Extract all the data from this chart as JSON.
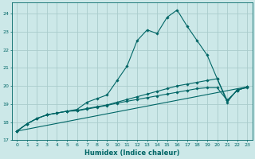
{
  "xlabel": "Humidex (Indice chaleur)",
  "ylabel": "",
  "bg_color": "#cce8e8",
  "grid_color": "#aacccc",
  "line_color": "#006666",
  "xlim": [
    -0.5,
    23.5
  ],
  "ylim": [
    17.0,
    24.6
  ],
  "yticks": [
    17,
    18,
    19,
    20,
    21,
    22,
    23,
    24
  ],
  "xticks": [
    0,
    1,
    2,
    3,
    4,
    5,
    6,
    7,
    8,
    9,
    10,
    11,
    12,
    13,
    14,
    15,
    16,
    17,
    18,
    19,
    20,
    21,
    22,
    23
  ],
  "series": [
    {
      "x": [
        0,
        1,
        2,
        3,
        4,
        5,
        6,
        7,
        8,
        9,
        10,
        11,
        12,
        13,
        14,
        15,
        16,
        17,
        18,
        19,
        20,
        21,
        22,
        23
      ],
      "y": [
        17.5,
        17.9,
        18.2,
        18.4,
        18.5,
        18.6,
        18.7,
        19.1,
        19.3,
        19.5,
        20.3,
        21.1,
        22.5,
        23.1,
        22.9,
        23.8,
        24.2,
        23.3,
        22.5,
        21.7,
        20.4,
        19.1,
        19.8,
        19.9
      ],
      "marker": true
    },
    {
      "x": [
        0,
        1,
        2,
        3,
        4,
        5,
        6,
        7,
        8,
        9,
        10,
        11,
        12,
        13,
        14,
        15,
        16,
        17,
        18,
        19,
        20,
        21,
        22,
        23
      ],
      "y": [
        17.5,
        17.9,
        18.2,
        18.4,
        18.5,
        18.6,
        18.65,
        18.75,
        18.85,
        18.95,
        19.1,
        19.25,
        19.4,
        19.55,
        19.7,
        19.85,
        20.0,
        20.1,
        20.2,
        20.3,
        20.4,
        19.2,
        19.75,
        19.95
      ],
      "marker": true
    },
    {
      "x": [
        0,
        1,
        2,
        3,
        4,
        5,
        6,
        7,
        8,
        9,
        10,
        11,
        12,
        13,
        14,
        15,
        16,
        17,
        18,
        19,
        20,
        21,
        22,
        23
      ],
      "y": [
        17.5,
        17.9,
        18.2,
        18.4,
        18.5,
        18.6,
        18.62,
        18.72,
        18.82,
        18.92,
        19.05,
        19.15,
        19.25,
        19.35,
        19.45,
        19.55,
        19.65,
        19.75,
        19.85,
        19.9,
        19.9,
        19.2,
        19.75,
        19.95
      ],
      "marker": true
    },
    {
      "x": [
        0,
        23
      ],
      "y": [
        17.5,
        19.95
      ],
      "marker": false
    }
  ]
}
